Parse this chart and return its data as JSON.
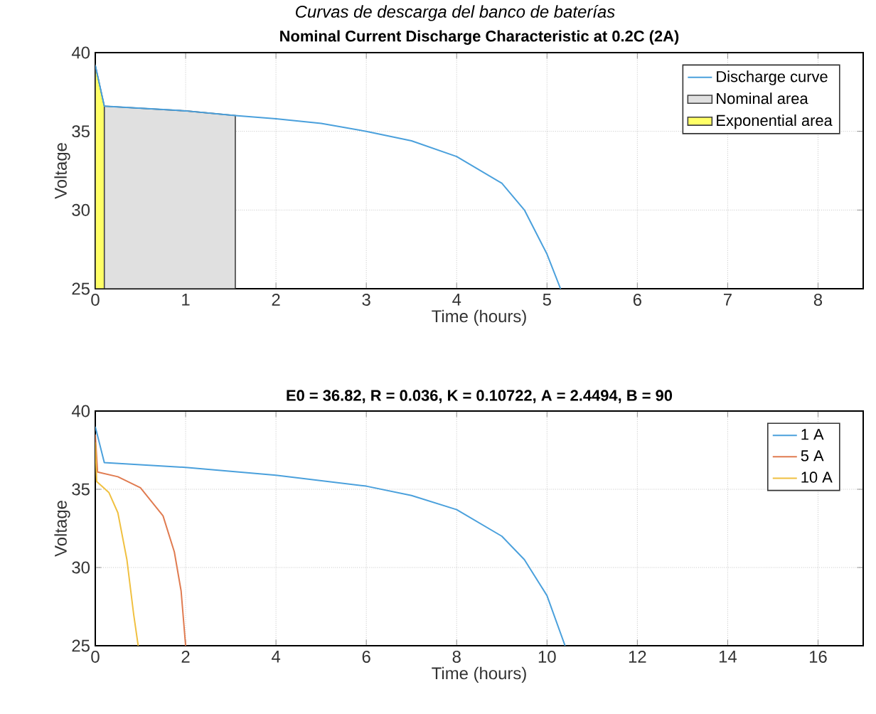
{
  "chart_data": [
    {
      "type": "line",
      "title": "Nominal Current Discharge Characteristic at 0.2C (2A)",
      "xlabel": "Time (hours)",
      "ylabel": "Voltage",
      "annotations": [
        "Curvas de descarga del banco de baterías"
      ],
      "xlim": [
        0,
        8.5
      ],
      "ylim": [
        25,
        40
      ],
      "xticks": [
        0,
        1,
        2,
        3,
        4,
        5,
        6,
        7,
        8
      ],
      "yticks": [
        25,
        30,
        35,
        40
      ],
      "grid": true,
      "legend": "top right",
      "series": [
        {
          "name": "Discharge curve",
          "color": "#4aa0dc",
          "x": [
            0,
            0.1,
            1,
            1.55,
            2,
            2.5,
            3,
            3.5,
            4,
            4.5,
            4.75,
            5,
            5.15
          ],
          "values": [
            39.2,
            36.6,
            36.3,
            36.0,
            35.8,
            35.5,
            35.0,
            34.4,
            33.4,
            31.7,
            30.0,
            27.2,
            25
          ]
        },
        {
          "name": "Nominal area",
          "type": "area",
          "color": "#e0e0e0",
          "x": [
            0,
            0.1,
            1,
            1.55
          ],
          "values": [
            36.6,
            36.6,
            36.3,
            36.0
          ]
        },
        {
          "name": "Exponential area",
          "type": "area",
          "color": "#ffff66",
          "x": [
            0,
            0.1
          ],
          "values": [
            39.2,
            36.6
          ]
        }
      ]
    },
    {
      "type": "line",
      "title": "E0 = 36.82, R = 0.036, K = 0.10722, A = 2.4494, B = 90",
      "xlabel": "Time (hours)",
      "ylabel": "Voltage",
      "xlim": [
        0,
        17
      ],
      "ylim": [
        25,
        40
      ],
      "xticks": [
        0,
        2,
        4,
        6,
        8,
        10,
        12,
        14,
        16
      ],
      "yticks": [
        25,
        30,
        35,
        40
      ],
      "grid": true,
      "legend": "top right",
      "series": [
        {
          "name": "1 A",
          "color": "#4aa0dc",
          "x": [
            0,
            0.2,
            2,
            4,
            6,
            7,
            8,
            9,
            9.5,
            10,
            10.4
          ],
          "values": [
            39,
            36.7,
            36.4,
            35.9,
            35.2,
            34.6,
            33.7,
            32.0,
            30.5,
            28.2,
            25
          ]
        },
        {
          "name": "5 A",
          "color": "#e07b50",
          "x": [
            0,
            0.05,
            0.5,
            1,
            1.5,
            1.75,
            1.9,
            2.0
          ],
          "values": [
            38.5,
            36.1,
            35.8,
            35.1,
            33.3,
            31,
            28.5,
            25
          ]
        },
        {
          "name": "10 A",
          "color": "#f0c040",
          "x": [
            0,
            0.03,
            0.3,
            0.5,
            0.7,
            0.85,
            0.95
          ],
          "values": [
            38,
            35.5,
            34.8,
            33.5,
            30.5,
            27,
            25
          ]
        }
      ]
    }
  ]
}
